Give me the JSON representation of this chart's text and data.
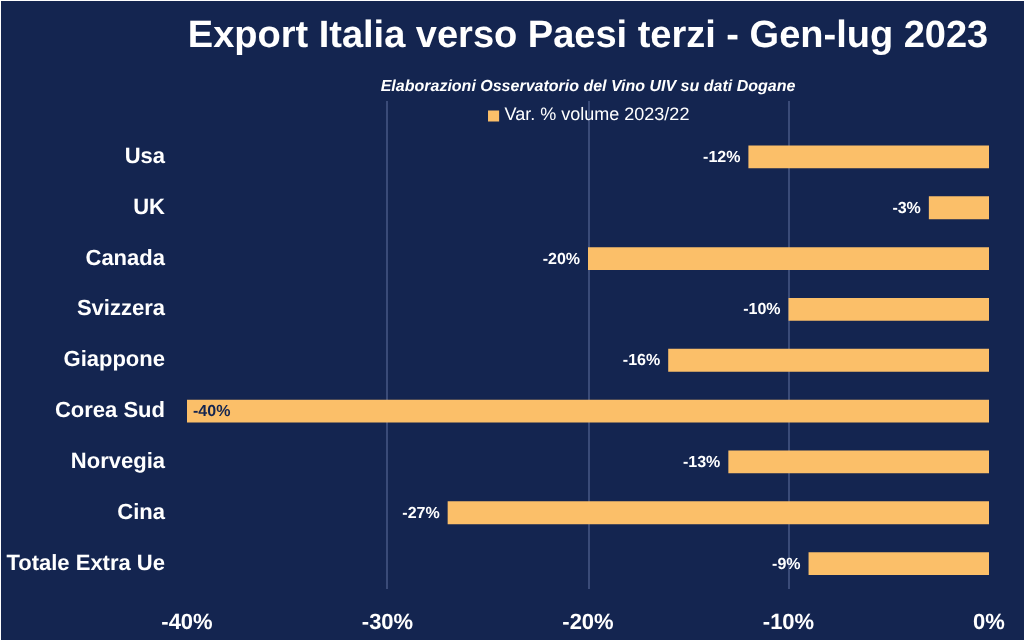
{
  "chart_data": {
    "type": "bar",
    "orientation": "horizontal",
    "title": "Export Italia verso Paesi terzi - Gen-lug 2023",
    "subtitle": "Elaborazioni Osservatorio del Vino UIV su dati Dogane",
    "categories": [
      "Usa",
      "UK",
      "Canada",
      "Svizzera",
      "Giappone",
      "Corea Sud",
      "Norvegia",
      "Cina",
      "Totale Extra Ue"
    ],
    "series": [
      {
        "name": "Var. % volume 2023/22",
        "color": "#fbbf69",
        "values": [
          -12,
          -3,
          -20,
          -10,
          -16,
          -40,
          -13,
          -27,
          -9
        ],
        "value_labels": [
          "-12%",
          "-3%",
          "-20%",
          "-10%",
          "-16%",
          "-40%",
          "-13%",
          "-27%",
          "-9%"
        ]
      }
    ],
    "xlim": [
      -40,
      0
    ],
    "xticks": [
      {
        "value": -40,
        "label": "-40%"
      },
      {
        "value": -30,
        "label": "-30%"
      },
      {
        "value": -20,
        "label": "-20%"
      },
      {
        "value": -10,
        "label": "-10%"
      },
      {
        "value": 0,
        "label": "0%"
      }
    ],
    "grid": "x",
    "legend": "top"
  }
}
